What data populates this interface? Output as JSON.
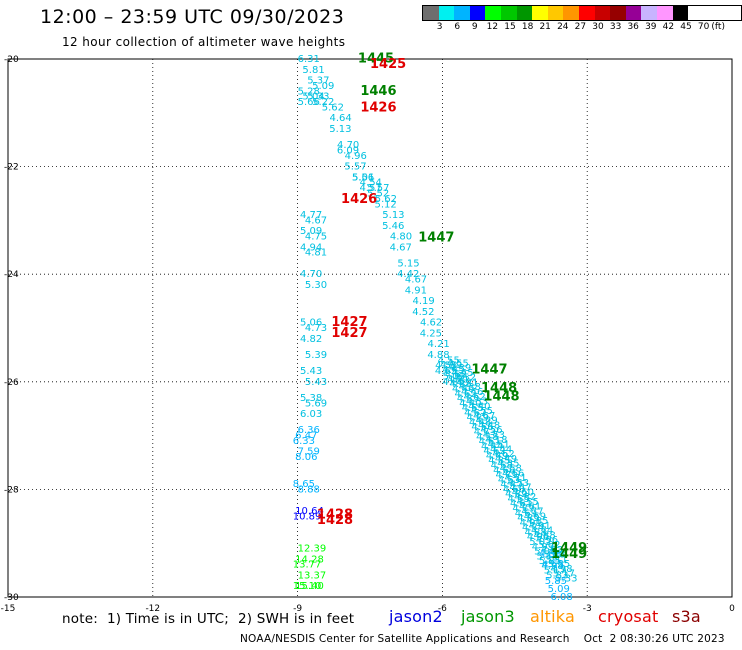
{
  "header": {
    "title": "12:00 – 23:59 UTC 09/30/2023",
    "subtitle": "12 hour collection of altimeter wave heights"
  },
  "color_scale": {
    "colors": [
      "#6e6e6e",
      "#00f0f0",
      "#00b4ff",
      "#0000ff",
      "#00ff00",
      "#00c800",
      "#009600",
      "#ffff00",
      "#ffc800",
      "#ff9600",
      "#ff0000",
      "#c80000",
      "#960000",
      "#960096",
      "#c8b4ff",
      "#ff96ff",
      "#000000"
    ],
    "labels": [
      "3",
      "6",
      "9",
      "12",
      "15",
      "18",
      "21",
      "24",
      "27",
      "30",
      "33",
      "36",
      "39",
      "42",
      "45",
      "70",
      "(ft)"
    ]
  },
  "map": {
    "lon_ticks": [
      "-15",
      "-12",
      "-9",
      "-6",
      "-3",
      "0"
    ],
    "lat_ticks": [
      "-20",
      "-22",
      "-24",
      "-26",
      "-28",
      "-30"
    ]
  },
  "chart_data": {
    "type": "scatter",
    "lon_range": [
      -15,
      0
    ],
    "lat_range": [
      -30,
      -20
    ],
    "grid": true,
    "units": "ft",
    "track_a_lon": [
      -9.0,
      -8.9,
      -8.8,
      -8.7
    ],
    "track_a": [
      [
        -20.0,
        "6.31",
        "#00c0e0"
      ],
      [
        -20.2,
        "5.81",
        "#00c0e0"
      ],
      [
        -20.4,
        "5.37",
        "#00c0e0"
      ],
      [
        -20.5,
        "5.09",
        "#00c0e0"
      ],
      [
        -20.6,
        "5.28",
        "#00c0e0"
      ],
      [
        -20.7,
        "5.04",
        "#00c0e0"
      ],
      [
        -20.7,
        "5.33",
        "#00c0e0"
      ],
      [
        -20.8,
        "5.22",
        "#00c0e0"
      ],
      [
        -20.8,
        "5.66",
        "#00c0e0"
      ]
    ],
    "track_b": [
      [
        -20.9,
        "5.62",
        "#00c0e0"
      ],
      [
        -21.1,
        "4.64",
        "#00c0e0"
      ],
      [
        -21.3,
        "5.13",
        "#00c0e0"
      ],
      [
        -21.6,
        "4.70",
        "#00c0e0"
      ],
      [
        -21.7,
        "6.09",
        "#00c0e0"
      ],
      [
        -21.8,
        "4.96",
        "#00c0e0"
      ],
      [
        -22.0,
        "5.57",
        "#00c0e0"
      ],
      [
        -22.2,
        "5.01",
        "#00c0e0"
      ],
      [
        -22.2,
        "5.56",
        "#00c0e0"
      ],
      [
        -22.3,
        "4.54",
        "#00c0e0"
      ],
      [
        -22.4,
        "4.57",
        "#00c0e0"
      ],
      [
        -22.4,
        "5.57",
        "#00c0e0"
      ],
      [
        -22.5,
        "5.52",
        "#00c0e0"
      ],
      [
        -22.6,
        "5.62",
        "#00c0e0"
      ],
      [
        -22.7,
        "5.12",
        "#00c0e0"
      ],
      [
        -22.9,
        "5.13",
        "#00c0e0"
      ],
      [
        -23.1,
        "5.46",
        "#00c0e0"
      ],
      [
        -23.3,
        "4.80",
        "#00c0e0"
      ],
      [
        -23.5,
        "4.67",
        "#00c0e0"
      ],
      [
        -23.8,
        "5.15",
        "#00c0e0"
      ],
      [
        -24.0,
        "4.42",
        "#00c0e0"
      ],
      [
        -24.1,
        "4.67",
        "#00c0e0"
      ],
      [
        -24.3,
        "4.91",
        "#00c0e0"
      ],
      [
        -24.5,
        "4.19",
        "#00c0e0"
      ],
      [
        -24.7,
        "4.52",
        "#00c0e0"
      ],
      [
        -24.9,
        "4.62",
        "#00c0e0"
      ],
      [
        -25.1,
        "4.25",
        "#00c0e0"
      ],
      [
        -25.3,
        "4.21",
        "#00c0e0"
      ],
      [
        -25.5,
        "4.88",
        "#00c0e0"
      ],
      [
        -25.7,
        "4.55",
        "#00c0e0"
      ],
      [
        -25.8,
        "4.65",
        "#00c0e0"
      ],
      [
        -25.9,
        "5.06",
        "#00c0e0"
      ],
      [
        -26.0,
        "4.89",
        "#00c0e0"
      ]
    ],
    "track_c_lon": [
      -8.95,
      -8.85
    ],
    "track_c": [
      [
        -22.9,
        "4.77",
        "#00c0e0"
      ],
      [
        -23.0,
        "4.67",
        "#00c0e0"
      ],
      [
        -23.2,
        "5.09",
        "#00c0e0"
      ],
      [
        -23.3,
        "4.75",
        "#00c0e0"
      ],
      [
        -23.5,
        "4.94",
        "#00c0e0"
      ],
      [
        -23.6,
        "4.81",
        "#00c0e0"
      ],
      [
        -24.0,
        "4.70",
        "#00c0e0"
      ],
      [
        -24.2,
        "5.30",
        "#00c0e0"
      ],
      [
        -24.9,
        "5.06",
        "#00c0e0"
      ],
      [
        -25.0,
        "4.73",
        "#00c0e0"
      ],
      [
        -25.2,
        "4.82",
        "#00c0e0"
      ],
      [
        -25.5,
        "5.39",
        "#00c0e0"
      ],
      [
        -25.8,
        "5.43",
        "#00c0e0"
      ],
      [
        -26.0,
        "5.43",
        "#00c0e0"
      ],
      [
        -26.3,
        "5.38",
        "#00c0e0"
      ],
      [
        -26.4,
        "5.69",
        "#00c0e0"
      ],
      [
        -26.6,
        "6.03",
        "#00c0e0"
      ]
    ],
    "track_d": [
      [
        -26.9,
        "6.36",
        "#00b4ff"
      ],
      [
        -27.0,
        "6.47",
        "#00b4ff"
      ],
      [
        -27.1,
        "6.33",
        "#00b4ff"
      ],
      [
        -27.3,
        "7.59",
        "#00b4ff"
      ],
      [
        -27.4,
        "8.06",
        "#00b4ff"
      ],
      [
        -27.9,
        "8.65",
        "#00b4ff"
      ],
      [
        -28.0,
        "8.88",
        "#00b4ff"
      ],
      [
        -28.4,
        "10.64",
        "#0000ff"
      ],
      [
        -28.5,
        "10.89",
        "#0000ff"
      ],
      [
        -29.1,
        "12.39",
        "#00ff00"
      ],
      [
        -29.3,
        "14.28",
        "#00ff00"
      ],
      [
        -29.4,
        "13.77",
        "#00ff00"
      ],
      [
        -29.6,
        "13.37",
        "#00ff00"
      ],
      [
        -29.8,
        "15.40",
        "#00ff00"
      ],
      [
        -29.8,
        "15.10",
        "#00ff00"
      ]
    ],
    "track_e_count": 46,
    "track_e_end": [
      [
        -29.2,
        "4.88"
      ],
      [
        -29.4,
        "4.55"
      ],
      [
        -29.7,
        "5.85"
      ],
      [
        -29.85,
        "5.09"
      ],
      [
        -30.0,
        "6.08"
      ]
    ],
    "track_e_values": [
      "4.55",
      "4.39",
      "4.45",
      "4.52",
      "4.21",
      "4.38",
      "4.46",
      "4.62",
      "4.33",
      "4.40",
      "4.55",
      "4.67",
      "4.29",
      "4.48",
      "4.56",
      "4.73",
      "4.18",
      "4.51",
      "4.44",
      "4.62",
      "4.49",
      "4.35",
      "4.58",
      "4.66",
      "4.71",
      "4.53",
      "4.47",
      "4.60",
      "4.82",
      "4.55",
      "4.61",
      "4.77",
      "4.69",
      "4.85",
      "4.91",
      "4.74",
      "4.88",
      "4.96",
      "5.02",
      "4.93",
      "5.08",
      "5.11",
      "5.25",
      "4.98",
      "5.17",
      "5.33"
    ],
    "time_labels": [
      {
        "lon": -7.75,
        "lat": -19.97,
        "text": "1445",
        "color": "#008000"
      },
      {
        "lon": -7.5,
        "lat": -20.07,
        "text": "1425",
        "color": "#e00000"
      },
      {
        "lon": -7.7,
        "lat": -20.58,
        "text": "1446",
        "color": "#008000"
      },
      {
        "lon": -7.7,
        "lat": -20.88,
        "text": "1426",
        "color": "#e00000"
      },
      {
        "lon": -8.1,
        "lat": -22.58,
        "text": "1426",
        "color": "#e00000"
      },
      {
        "lon": -6.5,
        "lat": -23.3,
        "text": "1447",
        "color": "#008000"
      },
      {
        "lon": -8.3,
        "lat": -24.87,
        "text": "1427",
        "color": "#e00000"
      },
      {
        "lon": -8.3,
        "lat": -25.07,
        "text": "1427",
        "color": "#e00000"
      },
      {
        "lon": -5.4,
        "lat": -25.75,
        "text": "1447",
        "color": "#008000"
      },
      {
        "lon": -5.2,
        "lat": -26.1,
        "text": "1448",
        "color": "#008000"
      },
      {
        "lon": -5.15,
        "lat": -26.25,
        "text": "1448",
        "color": "#008000"
      },
      {
        "lon": -8.6,
        "lat": -28.45,
        "text": "1428",
        "color": "#e00000"
      },
      {
        "lon": -8.6,
        "lat": -28.55,
        "text": "1428",
        "color": "#e00000"
      },
      {
        "lon": -3.75,
        "lat": -29.07,
        "text": "1449",
        "color": "#008000"
      },
      {
        "lon": -3.75,
        "lat": -29.18,
        "text": "1449",
        "color": "#008000"
      }
    ]
  },
  "footer": {
    "note": "note:  1) Time is in UTC;  2) SWH is in feet",
    "satellites": [
      {
        "name": "jason2",
        "color": "#0000dd"
      },
      {
        "name": "jason3",
        "color": "#009600"
      },
      {
        "name": "altika",
        "color": "#ff9600"
      },
      {
        "name": "cryosat",
        "color": "#e00000"
      },
      {
        "name": "s3a",
        "color": "#8b0000"
      }
    ],
    "credit": "NOAA/NESDIS Center for Satellite Applications and Research    Oct  2 08:30:26 UTC 2023"
  }
}
